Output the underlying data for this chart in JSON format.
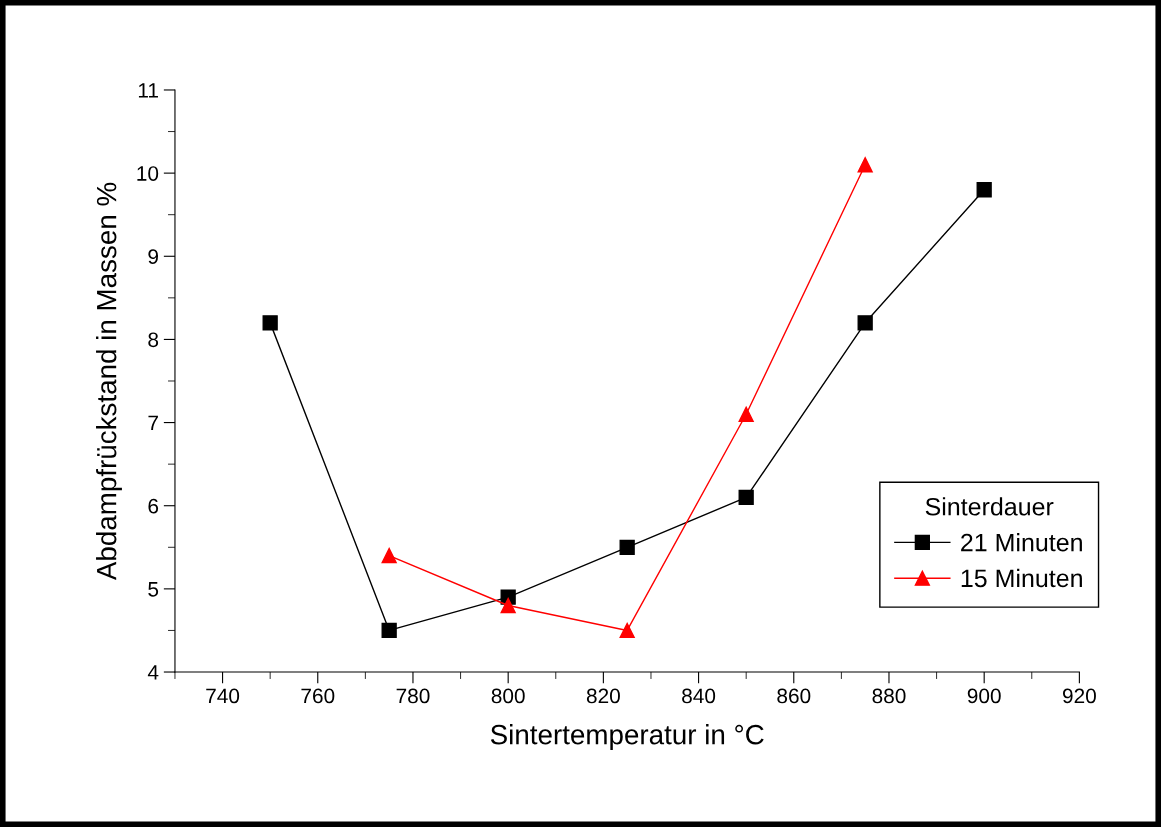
{
  "chart_data": {
    "type": "line",
    "xlabel": "Sintertemperatur in °C",
    "ylabel": "Abdampfrückstand in Massen %",
    "legend_title": "Sinterdauer",
    "xlim": [
      730,
      920
    ],
    "xticks": [
      740,
      760,
      780,
      800,
      820,
      840,
      860,
      880,
      900,
      920
    ],
    "ylim": [
      4,
      11
    ],
    "yticks": [
      4,
      5,
      6,
      7,
      8,
      9,
      10,
      11
    ],
    "series": [
      {
        "name": "21 Minuten",
        "color": "#000000",
        "marker": "square",
        "x": [
          750,
          775,
          800,
          825,
          850,
          875,
          900
        ],
        "values": [
          8.2,
          4.5,
          4.9,
          5.5,
          6.1,
          8.2,
          9.8
        ]
      },
      {
        "name": "15 Minuten",
        "color": "#ff0000",
        "marker": "triangle",
        "x": [
          775,
          800,
          825,
          850,
          875
        ],
        "values": [
          5.4,
          4.8,
          4.5,
          7.1,
          10.1
        ]
      }
    ],
    "grid": false,
    "legend": "bottom right",
    "line_style": "solid"
  }
}
